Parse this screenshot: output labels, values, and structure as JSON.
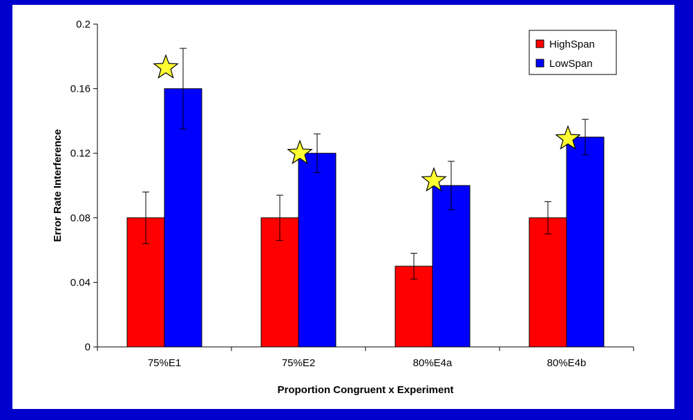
{
  "chart_data": {
    "type": "bar",
    "title": "",
    "xlabel": "Proportion Congruent x Experiment",
    "ylabel": "Error Rate Interference",
    "ylim": [
      0,
      0.2
    ],
    "yticks": [
      "0",
      "0.04",
      "0.08",
      "0.12",
      "0.16",
      "0.2"
    ],
    "categories": [
      "75%E1",
      "75%E2",
      "80%E4a",
      "80%E4b"
    ],
    "series": [
      {
        "name": "HighSpan",
        "color": "#ff0000",
        "values": [
          0.08,
          0.08,
          0.05,
          0.08
        ],
        "errors": [
          0.016,
          0.014,
          0.008,
          0.01
        ]
      },
      {
        "name": "LowSpan",
        "color": "#0000ff",
        "values": [
          0.16,
          0.12,
          0.1,
          0.13
        ],
        "errors": [
          0.025,
          0.012,
          0.015,
          0.011
        ]
      }
    ],
    "significance_marks": {
      "symbol": "star",
      "color": "#ffff33",
      "categories": [
        "75%E1",
        "75%E2",
        "80%E4a",
        "80%E4b"
      ]
    },
    "legend": "top-right",
    "grid": false
  }
}
